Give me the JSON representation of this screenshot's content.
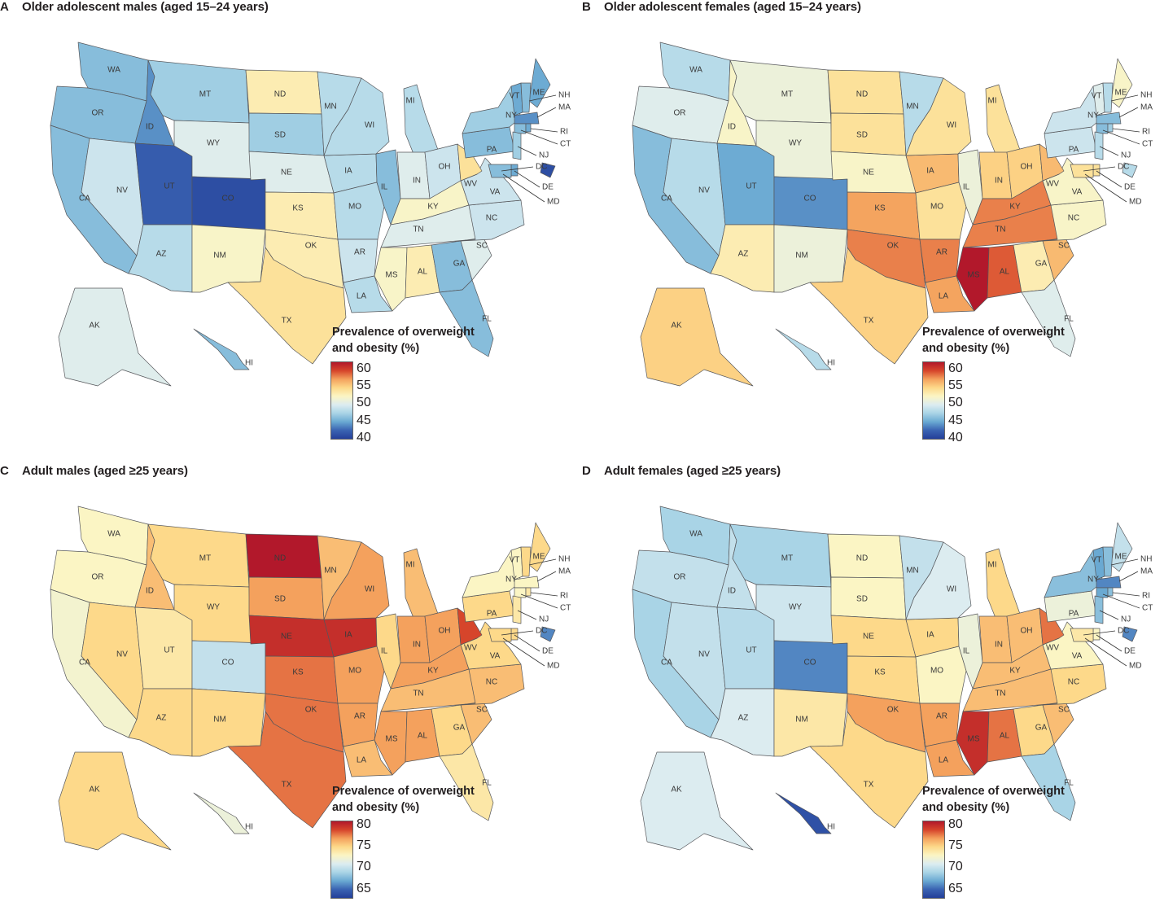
{
  "legend_colors": [
    "#b2182b",
    "#d6452b",
    "#f4a15d",
    "#fdd98a",
    "#fbf5c4",
    "#dcecf0",
    "#a9d4e6",
    "#6aa9d2",
    "#3a63b2",
    "#243f99"
  ],
  "panels": [
    {
      "letter": "A",
      "title": "Older adolescent males (aged 15–24 years)",
      "legend_title_line1": "Prevalence of overweight",
      "legend_title_line2": "and obesity (%)",
      "ticks": [
        "60",
        "55",
        "50",
        "45",
        "40"
      ],
      "range": [
        40,
        62
      ],
      "states": {
        "WA": 46,
        "OR": 46,
        "CA": 46,
        "ID": 44,
        "NV": 49,
        "UT": 42,
        "AZ": 48,
        "MT": 47,
        "WY": 50,
        "CO": 41,
        "NM": 52,
        "ND": 53,
        "SD": 47,
        "NE": 50,
        "KS": 53,
        "OK": 53,
        "TX": 54,
        "MN": 48,
        "IA": 48,
        "MO": 48,
        "AR": 49,
        "LA": 48,
        "WI": 48,
        "IL": 46,
        "MI": 48,
        "IN": 50,
        "OH": 49,
        "KY": 52,
        "TN": 50,
        "MS": 52,
        "AL": 53,
        "GA": 46,
        "FL": 46,
        "SC": 50,
        "NC": 49,
        "VA": 49,
        "WV": 54,
        "PA": 46,
        "NY": 47,
        "ME": 45,
        "VT": 45,
        "NH": 46,
        "MA": 44,
        "AK": 50,
        "HI": 46,
        "CT": 46,
        "NJ": 47,
        "DE": 45,
        "MD": 46,
        "DC": 41,
        "RI": 45
      }
    },
    {
      "letter": "B",
      "title": "Older adolescent females (aged 15–24 years)",
      "legend_title_line1": "Prevalence of  overweight",
      "legend_title_line2": "and obesity (%)",
      "ticks": [
        "60",
        "55",
        "50",
        "45",
        "40"
      ],
      "range": [
        40,
        62
      ],
      "states": {
        "WA": 48,
        "OR": 50,
        "CA": 46,
        "ID": 52,
        "NV": 48,
        "UT": 45,
        "AZ": 53,
        "MT": 51,
        "WY": 51,
        "CO": 44,
        "NM": 51,
        "ND": 54,
        "SD": 54,
        "NE": 52,
        "KS": 57,
        "OK": 58,
        "TX": 55,
        "MN": 48,
        "IA": 56,
        "MO": 54,
        "AR": 58,
        "LA": 57,
        "WI": 54,
        "IL": 51,
        "MI": 54,
        "IN": 55,
        "OH": 55,
        "KY": 58,
        "TN": 58,
        "MS": 62,
        "AL": 59,
        "GA": 53,
        "FL": 50,
        "SC": 56,
        "NC": 52,
        "VA": 52,
        "WV": 56,
        "PA": 49,
        "NY": 49,
        "ME": 52,
        "VT": 50,
        "NH": 48,
        "MA": 46,
        "AK": 55,
        "HI": 48,
        "CT": 46,
        "NJ": 48,
        "DE": 54,
        "MD": 54,
        "DC": 48,
        "RI": 47
      }
    },
    {
      "letter": "C",
      "title": "Adult males (aged ≥25 years)",
      "legend_title_line1": "Prevalence of overweight",
      "legend_title_line2": "and obesity (%)",
      "ticks": [
        "80",
        "75",
        "70",
        "65"
      ],
      "range": [
        63,
        81
      ],
      "states": {
        "WA": 73,
        "OR": 73,
        "CA": 72.5,
        "ID": 76,
        "NV": 75,
        "UT": 74,
        "AZ": 75,
        "MT": 75,
        "WY": 75,
        "CO": 70,
        "NM": 75,
        "ND": 81,
        "SD": 77,
        "NE": 80,
        "KS": 78,
        "OK": 78,
        "TX": 78,
        "MN": 76,
        "IA": 80,
        "MO": 77,
        "AR": 77,
        "LA": 76,
        "WI": 77,
        "IL": 75,
        "MI": 76,
        "IN": 77,
        "OH": 77,
        "KY": 77,
        "TN": 76,
        "MS": 77,
        "AL": 77,
        "GA": 75,
        "FL": 74,
        "SC": 76,
        "NC": 76,
        "VA": 75,
        "WV": 79,
        "PA": 75,
        "NY": 73,
        "ME": 75,
        "VT": 73,
        "NH": 75,
        "MA": 73,
        "AK": 75,
        "HI": 72,
        "CT": 73,
        "NJ": 74,
        "DE": 75,
        "MD": 75,
        "DC": 66,
        "RI": 74
      }
    },
    {
      "letter": "D",
      "title": "Adult females (aged ≥25 years)",
      "legend_title_line1": "Prevalence of overweight",
      "legend_title_line2": "and obesity (%)",
      "ticks": [
        "80",
        "75",
        "70",
        "65"
      ],
      "range": [
        63,
        81
      ],
      "states": {
        "WA": 69,
        "OR": 70,
        "CA": 69,
        "ID": 70,
        "NV": 70,
        "UT": 69.5,
        "AZ": 71,
        "MT": 69,
        "WY": 70.5,
        "CO": 66,
        "NM": 74,
        "ND": 73,
        "SD": 73,
        "NE": 75,
        "KS": 75,
        "OK": 77,
        "TX": 75,
        "MN": 70,
        "IA": 75,
        "MO": 73,
        "AR": 77,
        "LA": 77,
        "WI": 71,
        "IL": 72,
        "MI": 75,
        "IN": 76,
        "OH": 76,
        "KY": 76,
        "TN": 76,
        "MS": 80,
        "AL": 78,
        "GA": 75,
        "FL": 69,
        "SC": 76,
        "NC": 75,
        "VA": 73,
        "WV": 78,
        "PA": 72,
        "NY": 68,
        "ME": 70,
        "VT": 67,
        "NH": 68,
        "MA": 66,
        "AK": 71,
        "HI": 64,
        "CT": 67,
        "NJ": 68,
        "DE": 73,
        "MD": 74,
        "DC": 66,
        "RI": 68
      }
    }
  ]
}
